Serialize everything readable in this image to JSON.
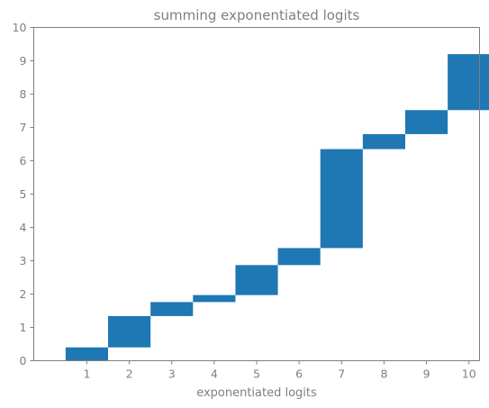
{
  "chart_data": {
    "type": "bar",
    "subtype": "floating-waterfall",
    "title": "summing exponentiated logits",
    "xlabel": "exponentiated logits",
    "ylabel": "",
    "categories": [
      "1",
      "2",
      "3",
      "4",
      "5",
      "6",
      "7",
      "8",
      "9",
      "10"
    ],
    "bottoms": [
      0.0,
      0.4,
      1.34,
      1.76,
      1.97,
      2.87,
      3.38,
      6.35,
      6.8,
      7.52
    ],
    "values": [
      0.4,
      0.94,
      0.42,
      0.21,
      0.9,
      0.51,
      2.97,
      0.45,
      0.72,
      1.68
    ],
    "ylim": [
      0,
      10
    ],
    "yticks": [
      "0",
      "1",
      "2",
      "3",
      "4",
      "5",
      "6",
      "7",
      "8",
      "9",
      "10"
    ],
    "bar_color": "#1f77b4",
    "axis_color": "#7f7f7f",
    "grid": false
  }
}
